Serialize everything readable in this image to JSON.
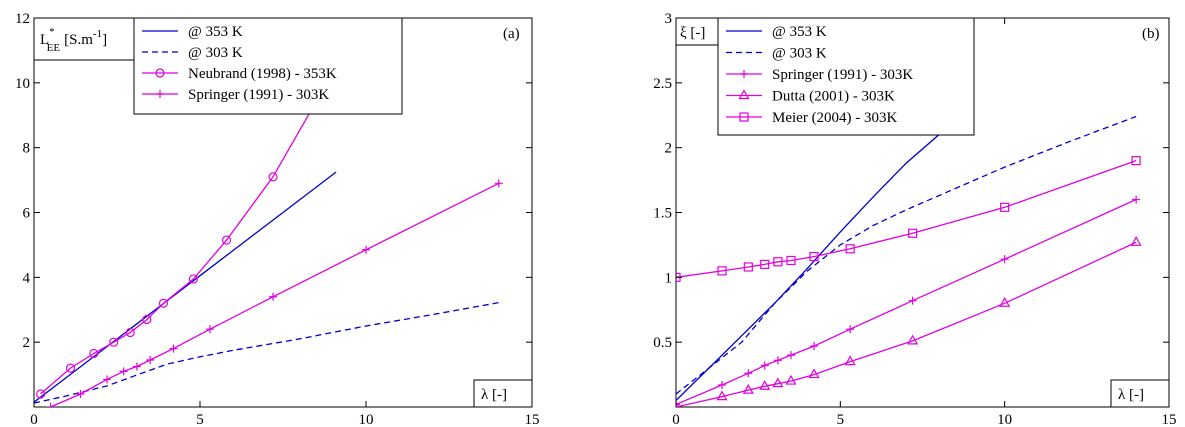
{
  "chart_data": [
    {
      "type": "line",
      "panel_label": "(a)",
      "ylabel_main": "L",
      "ylabel_sup": "*",
      "ylabel_sub": "EE",
      "ylabel_units": "[S.m",
      "ylabel_units_sup": "-1",
      "ylabel_units_end": "]",
      "xlabel": "λ [-]",
      "xlim": [
        0,
        15
      ],
      "ylim": [
        0,
        12
      ],
      "xticks": [
        0,
        5,
        10,
        15
      ],
      "yticks": [
        2,
        4,
        6,
        8,
        10,
        12
      ],
      "grid": false,
      "legend_position": "top-center",
      "series": [
        {
          "name": "@ 353 K",
          "color": "#0000cc",
          "dash": "solid",
          "marker": "none",
          "x": [
            0,
            1,
            2,
            3,
            4,
            5,
            6,
            7,
            8,
            9.1
          ],
          "y": [
            0.15,
            0.93,
            1.71,
            2.49,
            3.27,
            4.05,
            4.83,
            5.61,
            6.39,
            7.25
          ]
        },
        {
          "name": "@ 303 K",
          "color": "#0000cc",
          "dash": "dashed",
          "marker": "none",
          "x": [
            0,
            1,
            2.2,
            3,
            4,
            5,
            6,
            8,
            10,
            12,
            14
          ],
          "y": [
            0.12,
            0.35,
            0.65,
            0.95,
            1.32,
            1.55,
            1.75,
            2.1,
            2.5,
            2.85,
            3.22
          ]
        },
        {
          "name": "Neubrand (1998) - 353K",
          "color": "#e000e0",
          "dash": "solid",
          "marker": "circle",
          "x": [
            0.2,
            1.1,
            1.8,
            2.4,
            2.9,
            3.4,
            3.9,
            4.8,
            5.8,
            7.2,
            8.6
          ],
          "y": [
            0.4,
            1.2,
            1.65,
            2.0,
            2.3,
            2.7,
            3.2,
            3.95,
            5.15,
            7.1,
            9.6
          ]
        },
        {
          "name": "Springer (1991) - 303K",
          "color": "#e000e0",
          "dash": "solid",
          "marker": "plus",
          "x": [
            0.5,
            1.4,
            2.2,
            2.7,
            3.1,
            3.5,
            4.2,
            5.3,
            7.2,
            10.0,
            14.0
          ],
          "y": [
            0,
            0.4,
            0.85,
            1.1,
            1.25,
            1.45,
            1.8,
            2.4,
            3.4,
            4.85,
            6.9
          ]
        }
      ]
    },
    {
      "type": "line",
      "panel_label": "(b)",
      "ylabel": "ξ [-]",
      "xlabel": "λ [-]",
      "xlim": [
        0,
        15
      ],
      "ylim": [
        0,
        3
      ],
      "xticks": [
        0,
        5,
        10,
        15
      ],
      "yticks": [
        0.5,
        1,
        1.5,
        2,
        2.5,
        3
      ],
      "grid": false,
      "legend_position": "top-left",
      "series": [
        {
          "name": "@ 353 K",
          "color": "#0000cc",
          "dash": "solid",
          "marker": "none",
          "x": [
            0,
            1,
            2,
            3,
            4,
            5,
            6,
            7,
            8,
            8.7
          ],
          "y": [
            0.05,
            0.3,
            0.55,
            0.8,
            1.07,
            1.35,
            1.62,
            1.88,
            2.1,
            2.2
          ]
        },
        {
          "name": "@ 303 K",
          "color": "#0000cc",
          "dash": "dashed",
          "marker": "none",
          "x": [
            0,
            1,
            2,
            3,
            4,
            5,
            6,
            7,
            8,
            10,
            12,
            14
          ],
          "y": [
            0.1,
            0.3,
            0.5,
            0.8,
            1.05,
            1.25,
            1.4,
            1.52,
            1.63,
            1.85,
            2.05,
            2.24
          ]
        },
        {
          "name": "Springer (1991) - 303K",
          "color": "#e000e0",
          "dash": "solid",
          "marker": "plus",
          "x": [
            0,
            1.4,
            2.2,
            2.7,
            3.1,
            3.5,
            4.2,
            5.3,
            7.2,
            10.0,
            14.0
          ],
          "y": [
            0.02,
            0.17,
            0.26,
            0.32,
            0.36,
            0.4,
            0.47,
            0.6,
            0.82,
            1.14,
            1.6
          ]
        },
        {
          "name": "Dutta (2001) - 303K",
          "color": "#e000e0",
          "dash": "solid",
          "marker": "triangle",
          "x": [
            0,
            1.4,
            2.2,
            2.7,
            3.1,
            3.5,
            4.2,
            5.3,
            7.2,
            10.0,
            14.0
          ],
          "y": [
            0,
            0.08,
            0.13,
            0.16,
            0.18,
            0.2,
            0.25,
            0.35,
            0.51,
            0.8,
            1.27
          ]
        },
        {
          "name": "Meier (2004) - 303K",
          "color": "#e000e0",
          "dash": "solid",
          "marker": "square",
          "x": [
            0,
            1.4,
            2.2,
            2.7,
            3.1,
            3.5,
            4.2,
            5.3,
            7.2,
            10.0,
            14.0
          ],
          "y": [
            1.0,
            1.05,
            1.08,
            1.1,
            1.12,
            1.13,
            1.16,
            1.22,
            1.34,
            1.54,
            1.9
          ]
        }
      ]
    }
  ]
}
